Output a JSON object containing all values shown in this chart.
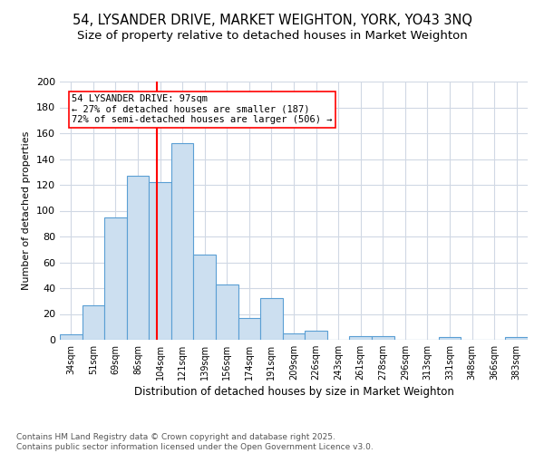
{
  "title_line1": "54, LYSANDER DRIVE, MARKET WEIGHTON, YORK, YO43 3NQ",
  "title_line2": "Size of property relative to detached houses in Market Weighton",
  "xlabel": "Distribution of detached houses by size in Market Weighton",
  "ylabel": "Number of detached properties",
  "bar_color": "#ccdff0",
  "bar_edge_color": "#5a9fd4",
  "grid_color": "#d0d8e4",
  "background_color": "#ffffff",
  "categories": [
    "34sqm",
    "51sqm",
    "69sqm",
    "86sqm",
    "104sqm",
    "121sqm",
    "139sqm",
    "156sqm",
    "174sqm",
    "191sqm",
    "209sqm",
    "226sqm",
    "243sqm",
    "261sqm",
    "278sqm",
    "296sqm",
    "313sqm",
    "331sqm",
    "348sqm",
    "366sqm",
    "383sqm"
  ],
  "values": [
    4,
    27,
    95,
    127,
    122,
    152,
    66,
    43,
    17,
    32,
    5,
    7,
    0,
    3,
    3,
    0,
    0,
    2,
    0,
    0,
    2
  ],
  "ylim": [
    0,
    200
  ],
  "yticks": [
    0,
    20,
    40,
    60,
    80,
    100,
    120,
    140,
    160,
    180,
    200
  ],
  "red_line_x": 3.87,
  "annotation_text": "54 LYSANDER DRIVE: 97sqm\n← 27% of detached houses are smaller (187)\n72% of semi-detached houses are larger (506) →",
  "footer_text": "Contains HM Land Registry data © Crown copyright and database right 2025.\nContains public sector information licensed under the Open Government Licence v3.0.",
  "title_fontsize": 10.5,
  "subtitle_fontsize": 9.5,
  "annotation_fontsize": 7.5,
  "footer_fontsize": 6.5,
  "ylabel_fontsize": 8,
  "xlabel_fontsize": 8.5
}
